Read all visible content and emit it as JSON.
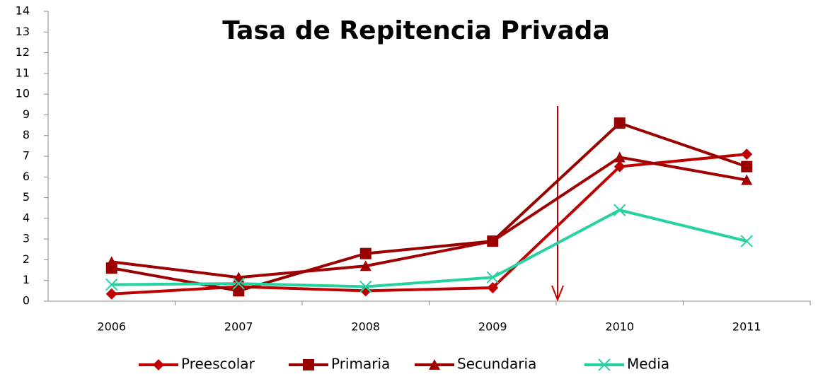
{
  "chart_data": {
    "type": "line",
    "title": "Tasa de Repitencia Privada",
    "categories": [
      "2006",
      "2007",
      "2008",
      "2009",
      "2010",
      "2011"
    ],
    "series": [
      {
        "name": "Preescolar",
        "color": "#c00000",
        "marker": "diamond",
        "values": [
          0.35,
          0.7,
          0.5,
          0.65,
          6.5,
          7.1
        ]
      },
      {
        "name": "Primaria",
        "color": "#990000",
        "marker": "square",
        "values": [
          1.6,
          0.5,
          2.3,
          2.9,
          8.6,
          6.5
        ]
      },
      {
        "name": "Secundaria",
        "color": "#a00000",
        "marker": "triangle",
        "values": [
          1.9,
          1.15,
          1.7,
          2.9,
          6.95,
          5.85
        ]
      },
      {
        "name": "Media",
        "color": "#26d3a0",
        "marker": "x",
        "values": [
          0.8,
          0.85,
          0.7,
          1.15,
          4.4,
          2.9
        ]
      }
    ],
    "ylim": [
      0,
      14
    ],
    "yticks": [
      0,
      1,
      2,
      3,
      4,
      5,
      6,
      7,
      8,
      9,
      10,
      11,
      12,
      13,
      14
    ],
    "grid": false,
    "legend": "bottom"
  }
}
